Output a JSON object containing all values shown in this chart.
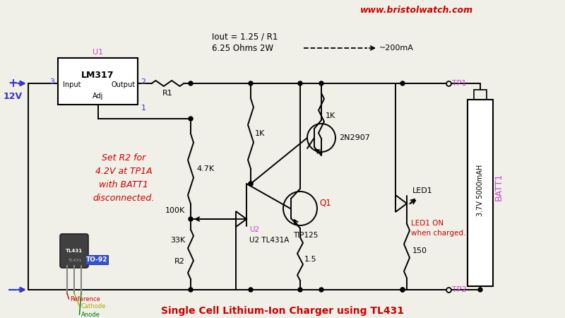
{
  "bg_color": "#f0f0e8",
  "title": "Single Cell Lithium-Ion Charger using TL431",
  "title_color": "#cc0000",
  "website": "www.bristolwatch.com",
  "website_color": "#cc0000",
  "lm317_label": "U1",
  "lm317_chip": "LM317",
  "iout_text": "Iout = 1.25 / R1",
  "r1_label": "6.25 Ohms 2W",
  "r1_name": "R1",
  "r_4_7k": "4.7K",
  "r_1k_left": "1K",
  "r_1k_right": "1K",
  "r_100k": "100K",
  "r2_label": "R2",
  "r_33k": "33K",
  "r_1_5": "1.5",
  "r_150": "150",
  "q1_label": "Q1",
  "q1_name": "TIP125",
  "q2_label": "2N2907",
  "u2_label": "U2",
  "u2_name": "U2 TL431A",
  "led_label": "LED1",
  "led_note": "LED1 ON\nwhen charged.",
  "batt_label": "BATT1",
  "batt_spec": "3.7V 5000mAH",
  "tp1_label": "TP1",
  "tp2_label": "TP2",
  "v12_label": "12V",
  "set_r2_text": "Set R2 for\n4.2V at TP1A\nwith BATT1\ndisconnected.",
  "to92_label": "TO-92",
  "ref_label": "Reference",
  "cathode_label": "Cathode",
  "anode_label": "Anode",
  "pin3": "3",
  "pin2": "2",
  "pin1": "1",
  "input_label": "Input",
  "output_label": "Output",
  "adj_label": "Adj",
  "wire_color": "#000000",
  "magenta_color": "#cc44cc",
  "blue_color": "#3333cc",
  "red_color": "#cc0000",
  "green_color": "#007700",
  "yellow_color": "#aaaa00"
}
